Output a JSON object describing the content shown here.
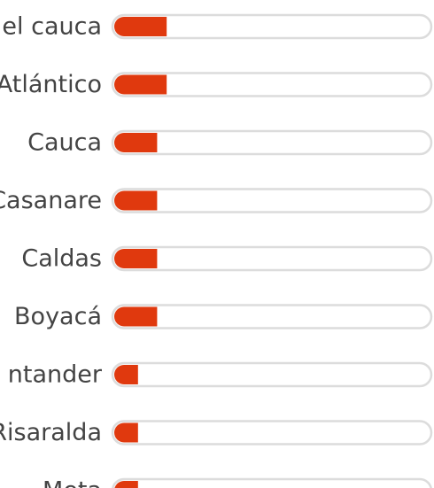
{
  "chart_data": {
    "type": "bar",
    "orientation": "horizontal",
    "categories": [
      "el cauca",
      "Atlántico",
      "Cauca",
      "Casanare",
      "Caldas",
      "Boyacá",
      "ntander",
      "Risaralda",
      "Meta"
    ],
    "values": [
      17,
      17,
      14,
      14,
      14,
      14,
      8,
      8,
      8
    ],
    "color": "#e0390e",
    "xlim": [
      0,
      100
    ]
  }
}
